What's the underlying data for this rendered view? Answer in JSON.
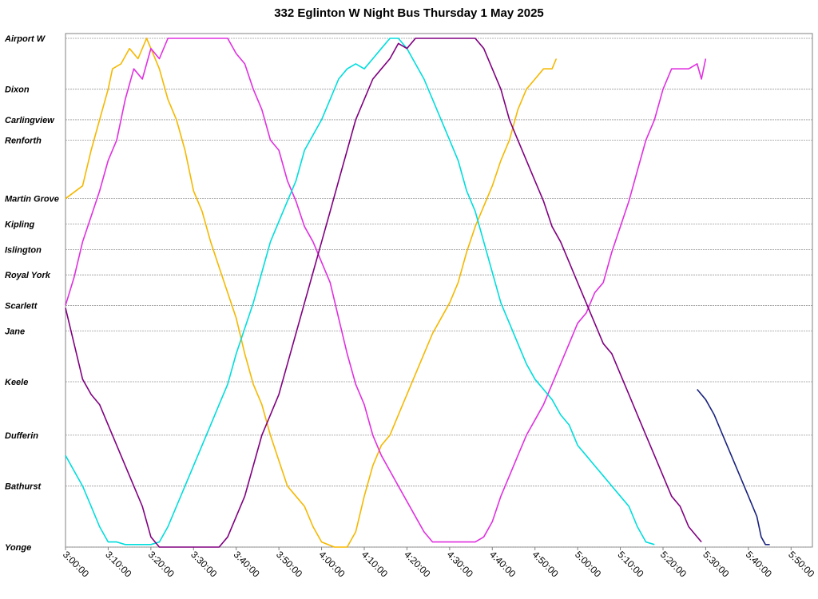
{
  "chart_data": {
    "type": "line",
    "title": "332 Eglinton W Night Bus Thursday 1 May 2025",
    "xlabel": "",
    "ylabel": "",
    "x_unit": "time",
    "xlim": [
      "3:00:00",
      "5:55:00"
    ],
    "x_ticks": [
      "3:00:00",
      "3:10:00",
      "3:20:00",
      "3:30:00",
      "3:40:00",
      "3:50:00",
      "4:00:00",
      "4:10:00",
      "4:20:00",
      "4:30:00",
      "4:40:00",
      "4:50:00",
      "5:00:00",
      "5:10:00",
      "5:20:00",
      "5:30:00",
      "5:40:00",
      "5:50:00"
    ],
    "y_axis": "stop",
    "stops": [
      {
        "name": "Airport W",
        "pos": 100
      },
      {
        "name": "Dixon",
        "pos": 90
      },
      {
        "name": "Carlingview",
        "pos": 84
      },
      {
        "name": "Renforth",
        "pos": 80
      },
      {
        "name": "Martin Grove",
        "pos": 68.5
      },
      {
        "name": "Kipling",
        "pos": 63.5
      },
      {
        "name": "Islington",
        "pos": 58.5
      },
      {
        "name": "Royal York",
        "pos": 53.5
      },
      {
        "name": "Scarlett",
        "pos": 47.5
      },
      {
        "name": "Jane",
        "pos": 42.5
      },
      {
        "name": "Keele",
        "pos": 32.5
      },
      {
        "name": "Dufferin",
        "pos": 22
      },
      {
        "name": "Bathurst",
        "pos": 12
      },
      {
        "name": "Yonge",
        "pos": 0
      }
    ],
    "grid": true,
    "legend": "none",
    "series": [
      {
        "color": "#F5B800",
        "points": [
          [
            "3:00:00",
            68.5
          ],
          [
            "3:04:00",
            71
          ],
          [
            "3:06:00",
            78
          ],
          [
            "3:08:00",
            84
          ],
          [
            "3:10:00",
            90
          ],
          [
            "3:11:00",
            94
          ],
          [
            "3:13:00",
            95
          ],
          [
            "3:15:00",
            98
          ],
          [
            "3:17:00",
            96
          ],
          [
            "3:19:00",
            100
          ],
          [
            "3:20:00",
            98
          ],
          [
            "3:22:00",
            94
          ],
          [
            "3:24:00",
            88
          ],
          [
            "3:26:00",
            84
          ],
          [
            "3:28:00",
            78
          ],
          [
            "3:30:00",
            70
          ],
          [
            "3:32:00",
            66
          ],
          [
            "3:34:00",
            60
          ],
          [
            "3:36:00",
            55
          ],
          [
            "3:38:00",
            50
          ],
          [
            "3:40:00",
            45
          ],
          [
            "3:42:00",
            38
          ],
          [
            "3:44:00",
            32
          ],
          [
            "3:46:00",
            28
          ],
          [
            "3:48:00",
            22
          ],
          [
            "3:50:00",
            17
          ],
          [
            "3:52:00",
            12
          ],
          [
            "3:54:00",
            10
          ],
          [
            "3:56:00",
            8
          ],
          [
            "3:58:00",
            4
          ],
          [
            "4:00:00",
            1
          ],
          [
            "4:03:00",
            0
          ],
          [
            "4:06:00",
            0
          ],
          [
            "4:08:00",
            3
          ],
          [
            "4:10:00",
            10
          ],
          [
            "4:12:00",
            16
          ],
          [
            "4:14:00",
            20
          ],
          [
            "4:16:00",
            22
          ],
          [
            "4:18:00",
            26
          ],
          [
            "4:20:00",
            30
          ],
          [
            "4:22:00",
            34
          ],
          [
            "4:24:00",
            38
          ],
          [
            "4:26:00",
            42
          ],
          [
            "4:28:00",
            45
          ],
          [
            "4:30:00",
            48
          ],
          [
            "4:32:00",
            52
          ],
          [
            "4:34:00",
            58
          ],
          [
            "4:36:00",
            63
          ],
          [
            "4:38:00",
            67
          ],
          [
            "4:40:00",
            71
          ],
          [
            "4:42:00",
            76
          ],
          [
            "4:44:00",
            80
          ],
          [
            "4:46:00",
            86
          ],
          [
            "4:48:00",
            90
          ],
          [
            "4:50:00",
            92
          ],
          [
            "4:52:00",
            94
          ],
          [
            "4:54:00",
            94
          ],
          [
            "4:55:00",
            96
          ]
        ]
      },
      {
        "color": "#E030E0",
        "points": [
          [
            "3:00:00",
            47.5
          ],
          [
            "3:02:00",
            53
          ],
          [
            "3:04:00",
            60
          ],
          [
            "3:06:00",
            65
          ],
          [
            "3:08:00",
            70
          ],
          [
            "3:10:00",
            76
          ],
          [
            "3:12:00",
            80
          ],
          [
            "3:14:00",
            88
          ],
          [
            "3:16:00",
            94
          ],
          [
            "3:18:00",
            92
          ],
          [
            "3:20:00",
            98
          ],
          [
            "3:22:00",
            96
          ],
          [
            "3:24:00",
            100
          ],
          [
            "3:26:00",
            100
          ],
          [
            "3:30:00",
            100
          ],
          [
            "3:38:00",
            100
          ],
          [
            "3:40:00",
            97
          ],
          [
            "3:42:00",
            95
          ],
          [
            "3:44:00",
            90
          ],
          [
            "3:46:00",
            86
          ],
          [
            "3:48:00",
            80
          ],
          [
            "3:50:00",
            78
          ],
          [
            "3:52:00",
            72
          ],
          [
            "3:54:00",
            68
          ],
          [
            "3:56:00",
            63
          ],
          [
            "3:58:00",
            60
          ],
          [
            "4:00:00",
            56
          ],
          [
            "4:02:00",
            52
          ],
          [
            "4:04:00",
            45
          ],
          [
            "4:06:00",
            38
          ],
          [
            "4:08:00",
            32
          ],
          [
            "4:10:00",
            28
          ],
          [
            "4:12:00",
            22
          ],
          [
            "4:14:00",
            18
          ],
          [
            "4:16:00",
            15
          ],
          [
            "4:18:00",
            12
          ],
          [
            "4:20:00",
            9
          ],
          [
            "4:22:00",
            6
          ],
          [
            "4:24:00",
            3
          ],
          [
            "4:26:00",
            1
          ],
          [
            "4:30:00",
            1
          ],
          [
            "4:36:00",
            1
          ],
          [
            "4:38:00",
            2
          ],
          [
            "4:40:00",
            5
          ],
          [
            "4:42:00",
            10
          ],
          [
            "4:44:00",
            14
          ],
          [
            "4:46:00",
            18
          ],
          [
            "4:48:00",
            22
          ],
          [
            "4:50:00",
            25
          ],
          [
            "4:52:00",
            28
          ],
          [
            "4:54:00",
            32
          ],
          [
            "4:56:00",
            36
          ],
          [
            "4:58:00",
            40
          ],
          [
            "5:00:00",
            44
          ],
          [
            "5:02:00",
            46
          ],
          [
            "5:04:00",
            50
          ],
          [
            "5:06:00",
            52
          ],
          [
            "5:08:00",
            58
          ],
          [
            "5:10:00",
            63
          ],
          [
            "5:12:00",
            68
          ],
          [
            "5:14:00",
            74
          ],
          [
            "5:16:00",
            80
          ],
          [
            "5:18:00",
            84
          ],
          [
            "5:20:00",
            90
          ],
          [
            "5:22:00",
            94
          ],
          [
            "5:26:00",
            94
          ],
          [
            "5:28:00",
            95
          ],
          [
            "5:29:00",
            92
          ],
          [
            "5:30:00",
            96
          ]
        ]
      },
      {
        "color": "#00DDDD",
        "points": [
          [
            "3:00:00",
            18
          ],
          [
            "3:02:00",
            15
          ],
          [
            "3:04:00",
            12
          ],
          [
            "3:06:00",
            8
          ],
          [
            "3:08:00",
            4
          ],
          [
            "3:10:00",
            1
          ],
          [
            "3:12:00",
            1
          ],
          [
            "3:14:00",
            0.5
          ],
          [
            "3:20:00",
            0.5
          ],
          [
            "3:22:00",
            1
          ],
          [
            "3:24:00",
            4
          ],
          [
            "3:26:00",
            8
          ],
          [
            "3:28:00",
            12
          ],
          [
            "3:30:00",
            16
          ],
          [
            "3:32:00",
            20
          ],
          [
            "3:34:00",
            24
          ],
          [
            "3:36:00",
            28
          ],
          [
            "3:38:00",
            32
          ],
          [
            "3:40:00",
            38
          ],
          [
            "3:42:00",
            43
          ],
          [
            "3:44:00",
            48
          ],
          [
            "3:46:00",
            54
          ],
          [
            "3:48:00",
            60
          ],
          [
            "3:50:00",
            64
          ],
          [
            "3:52:00",
            68
          ],
          [
            "3:54:00",
            72
          ],
          [
            "3:56:00",
            78
          ],
          [
            "3:58:00",
            81
          ],
          [
            "4:00:00",
            84
          ],
          [
            "4:02:00",
            88
          ],
          [
            "4:04:00",
            92
          ],
          [
            "4:06:00",
            94
          ],
          [
            "4:08:00",
            95
          ],
          [
            "4:10:00",
            94
          ],
          [
            "4:12:00",
            96
          ],
          [
            "4:14:00",
            98
          ],
          [
            "4:16:00",
            100
          ],
          [
            "4:18:00",
            100
          ],
          [
            "4:20:00",
            98
          ],
          [
            "4:22:00",
            95
          ],
          [
            "4:24:00",
            92
          ],
          [
            "4:26:00",
            88
          ],
          [
            "4:28:00",
            84
          ],
          [
            "4:30:00",
            80
          ],
          [
            "4:32:00",
            76
          ],
          [
            "4:34:00",
            70
          ],
          [
            "4:36:00",
            66
          ],
          [
            "4:38:00",
            60
          ],
          [
            "4:40:00",
            54
          ],
          [
            "4:42:00",
            48
          ],
          [
            "4:44:00",
            44
          ],
          [
            "4:46:00",
            40
          ],
          [
            "4:48:00",
            36
          ],
          [
            "4:50:00",
            33
          ],
          [
            "4:52:00",
            31
          ],
          [
            "4:54:00",
            29
          ],
          [
            "4:56:00",
            26
          ],
          [
            "4:58:00",
            24
          ],
          [
            "5:00:00",
            20
          ],
          [
            "5:02:00",
            18
          ],
          [
            "5:04:00",
            16
          ],
          [
            "5:06:00",
            14
          ],
          [
            "5:08:00",
            12
          ],
          [
            "5:10:00",
            10
          ],
          [
            "5:12:00",
            8
          ],
          [
            "5:14:00",
            4
          ],
          [
            "5:16:00",
            1
          ],
          [
            "5:18:00",
            0.5
          ]
        ]
      },
      {
        "color": "#800080",
        "points": [
          [
            "3:00:00",
            47
          ],
          [
            "3:02:00",
            40
          ],
          [
            "3:04:00",
            33
          ],
          [
            "3:06:00",
            30
          ],
          [
            "3:08:00",
            28
          ],
          [
            "3:10:00",
            24
          ],
          [
            "3:12:00",
            20
          ],
          [
            "3:14:00",
            16
          ],
          [
            "3:16:00",
            12
          ],
          [
            "3:18:00",
            8
          ],
          [
            "3:20:00",
            2
          ],
          [
            "3:22:00",
            0
          ],
          [
            "3:24:00",
            0
          ],
          [
            "3:30:00",
            0
          ],
          [
            "3:36:00",
            0
          ],
          [
            "3:38:00",
            2
          ],
          [
            "3:40:00",
            6
          ],
          [
            "3:42:00",
            10
          ],
          [
            "3:44:00",
            16
          ],
          [
            "3:46:00",
            22
          ],
          [
            "3:48:00",
            26
          ],
          [
            "3:50:00",
            30
          ],
          [
            "3:52:00",
            36
          ],
          [
            "3:54:00",
            42
          ],
          [
            "3:56:00",
            48
          ],
          [
            "3:58:00",
            54
          ],
          [
            "4:00:00",
            60
          ],
          [
            "4:02:00",
            66
          ],
          [
            "4:04:00",
            72
          ],
          [
            "4:06:00",
            78
          ],
          [
            "4:08:00",
            84
          ],
          [
            "4:10:00",
            88
          ],
          [
            "4:12:00",
            92
          ],
          [
            "4:14:00",
            94
          ],
          [
            "4:16:00",
            96
          ],
          [
            "4:18:00",
            99
          ],
          [
            "4:20:00",
            98
          ],
          [
            "4:22:00",
            100
          ],
          [
            "4:26:00",
            100
          ],
          [
            "4:30:00",
            100
          ],
          [
            "4:36:00",
            100
          ],
          [
            "4:38:00",
            98
          ],
          [
            "4:40:00",
            94
          ],
          [
            "4:42:00",
            90
          ],
          [
            "4:44:00",
            84
          ],
          [
            "4:46:00",
            80
          ],
          [
            "4:48:00",
            76
          ],
          [
            "4:50:00",
            72
          ],
          [
            "4:52:00",
            68
          ],
          [
            "4:54:00",
            63
          ],
          [
            "4:56:00",
            60
          ],
          [
            "4:58:00",
            56
          ],
          [
            "5:00:00",
            52
          ],
          [
            "5:02:00",
            48
          ],
          [
            "5:04:00",
            44
          ],
          [
            "5:06:00",
            40
          ],
          [
            "5:08:00",
            38
          ],
          [
            "5:10:00",
            34
          ],
          [
            "5:12:00",
            30
          ],
          [
            "5:14:00",
            26
          ],
          [
            "5:16:00",
            22
          ],
          [
            "5:18:00",
            18
          ],
          [
            "5:20:00",
            14
          ],
          [
            "5:22:00",
            10
          ],
          [
            "5:24:00",
            8
          ],
          [
            "5:26:00",
            4
          ],
          [
            "5:28:00",
            2
          ],
          [
            "5:29:00",
            1
          ]
        ]
      },
      {
        "color": "#1A237E",
        "points": [
          [
            "5:28:00",
            31
          ],
          [
            "5:30:00",
            29
          ],
          [
            "5:32:00",
            26
          ],
          [
            "5:34:00",
            22
          ],
          [
            "5:36:00",
            18
          ],
          [
            "5:38:00",
            14
          ],
          [
            "5:40:00",
            10
          ],
          [
            "5:42:00",
            6
          ],
          [
            "5:43:00",
            2
          ],
          [
            "5:44:00",
            0.5
          ],
          [
            "5:45:00",
            0.5
          ]
        ]
      }
    ]
  }
}
